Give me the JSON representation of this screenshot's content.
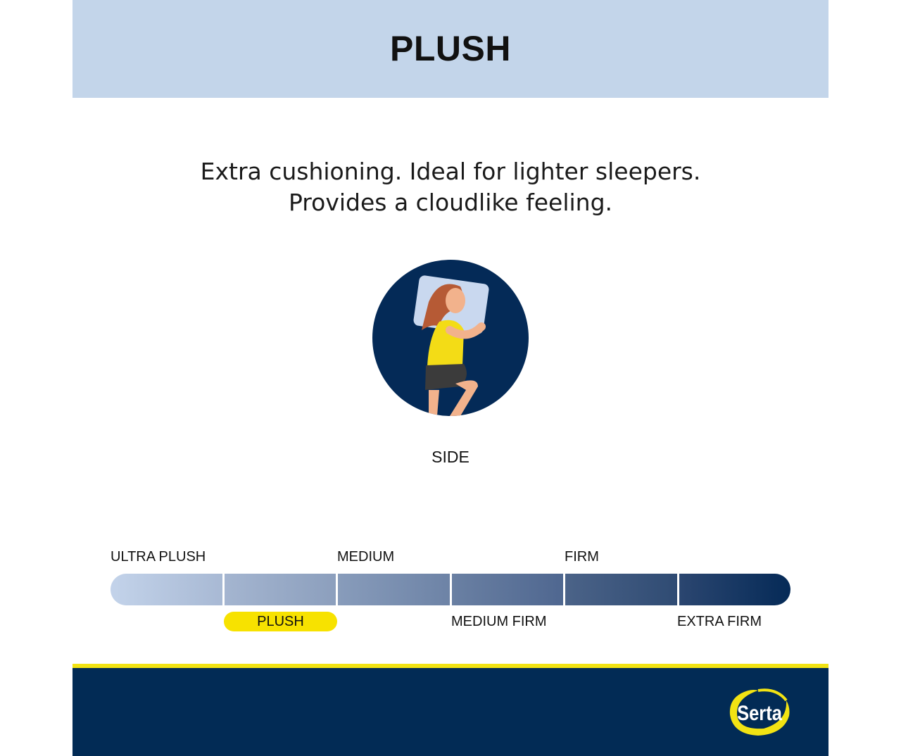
{
  "header": {
    "title": "PLUSH"
  },
  "description": {
    "lines": [
      "Extra cushioning. Ideal for lighter sleepers.",
      "Provides a cloudlike feeling."
    ]
  },
  "sleep_position": {
    "label": "SIDE",
    "icon": "side-sleeper-illustration"
  },
  "firmness_scale": {
    "levels": [
      "ULTRA PLUSH",
      "PLUSH",
      "MEDIUM",
      "MEDIUM FIRM",
      "FIRM",
      "EXTRA FIRM"
    ],
    "selected": "PLUSH",
    "segment_colors": [
      [
        "#c3d3ea",
        "#a8b9d4"
      ],
      [
        "#a4b5d0",
        "#8c9fbd"
      ],
      [
        "#889cbb",
        "#6d83a6"
      ],
      [
        "#6a80a3",
        "#4f6790"
      ],
      [
        "#4b6388",
        "#2f4b73"
      ],
      [
        "#2b4670",
        "#052a57"
      ]
    ],
    "highlight_color": "#f7e200"
  },
  "footer": {
    "brand": "Serta",
    "background": "#022b55",
    "accent": "#f2e313"
  }
}
